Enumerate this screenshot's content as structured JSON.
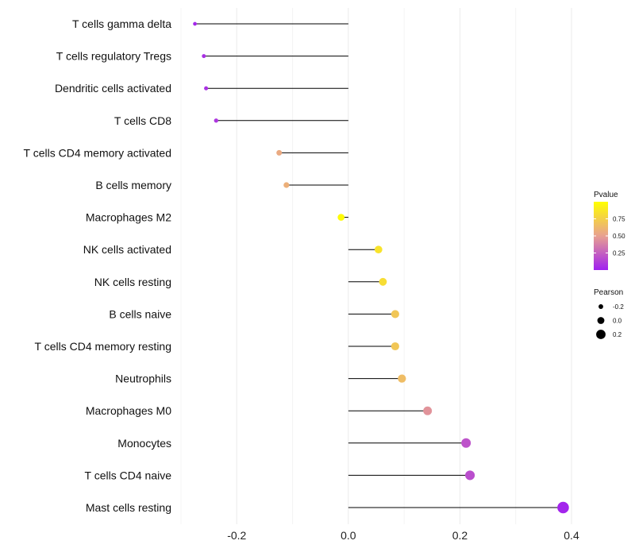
{
  "chart_data": {
    "type": "lollipop",
    "title": "",
    "xlabel": "",
    "ylabel": "",
    "xlim": [
      -0.3,
      0.4
    ],
    "x_ticks": [
      -0.2,
      0.0,
      0.2,
      0.4
    ],
    "x_tick_labels": [
      "-0.2",
      "0.0",
      "0.2",
      "0.4"
    ],
    "grid": true,
    "legend_position": "right",
    "color_scale": {
      "low": "#a020f0",
      "mid": "#e8a090",
      "high": "#ffff00"
    },
    "categories": [
      "T cells gamma delta",
      "T cells regulatory  Tregs ",
      "Dendritic cells activated",
      "T cells CD8",
      "T cells CD4 memory activated",
      "B cells memory",
      "Macrophages M2",
      "NK cells activated",
      "NK cells resting",
      "B cells naive",
      "T cells CD4 memory resting",
      "Neutrophils",
      "Macrophages M0",
      "Monocytes",
      "T cells CD4 naive",
      "Mast cells resting"
    ],
    "pearson": [
      -0.275,
      -0.259,
      -0.255,
      -0.237,
      -0.124,
      -0.111,
      -0.013,
      0.054,
      0.062,
      0.084,
      0.084,
      0.096,
      0.142,
      0.211,
      0.218,
      0.385
    ],
    "pvalue": [
      0.03,
      0.06,
      0.07,
      0.09,
      0.55,
      0.58,
      0.98,
      0.85,
      0.82,
      0.7,
      0.7,
      0.65,
      0.45,
      0.2,
      0.18,
      0.02
    ],
    "legend": {
      "pvalue_title": "Pvalue",
      "pvalue_ticks": [
        0.75,
        0.5,
        0.25
      ],
      "pvalue_tick_labels": [
        "0.75",
        "0.50",
        "0.25"
      ],
      "pvalue_range": [
        0.0,
        1.0
      ],
      "pearson_title": "Pearson",
      "pearson_values": [
        -0.2,
        0.0,
        0.2
      ],
      "pearson_labels": [
        "-0.2",
        "0.0",
        "0.2"
      ]
    }
  }
}
